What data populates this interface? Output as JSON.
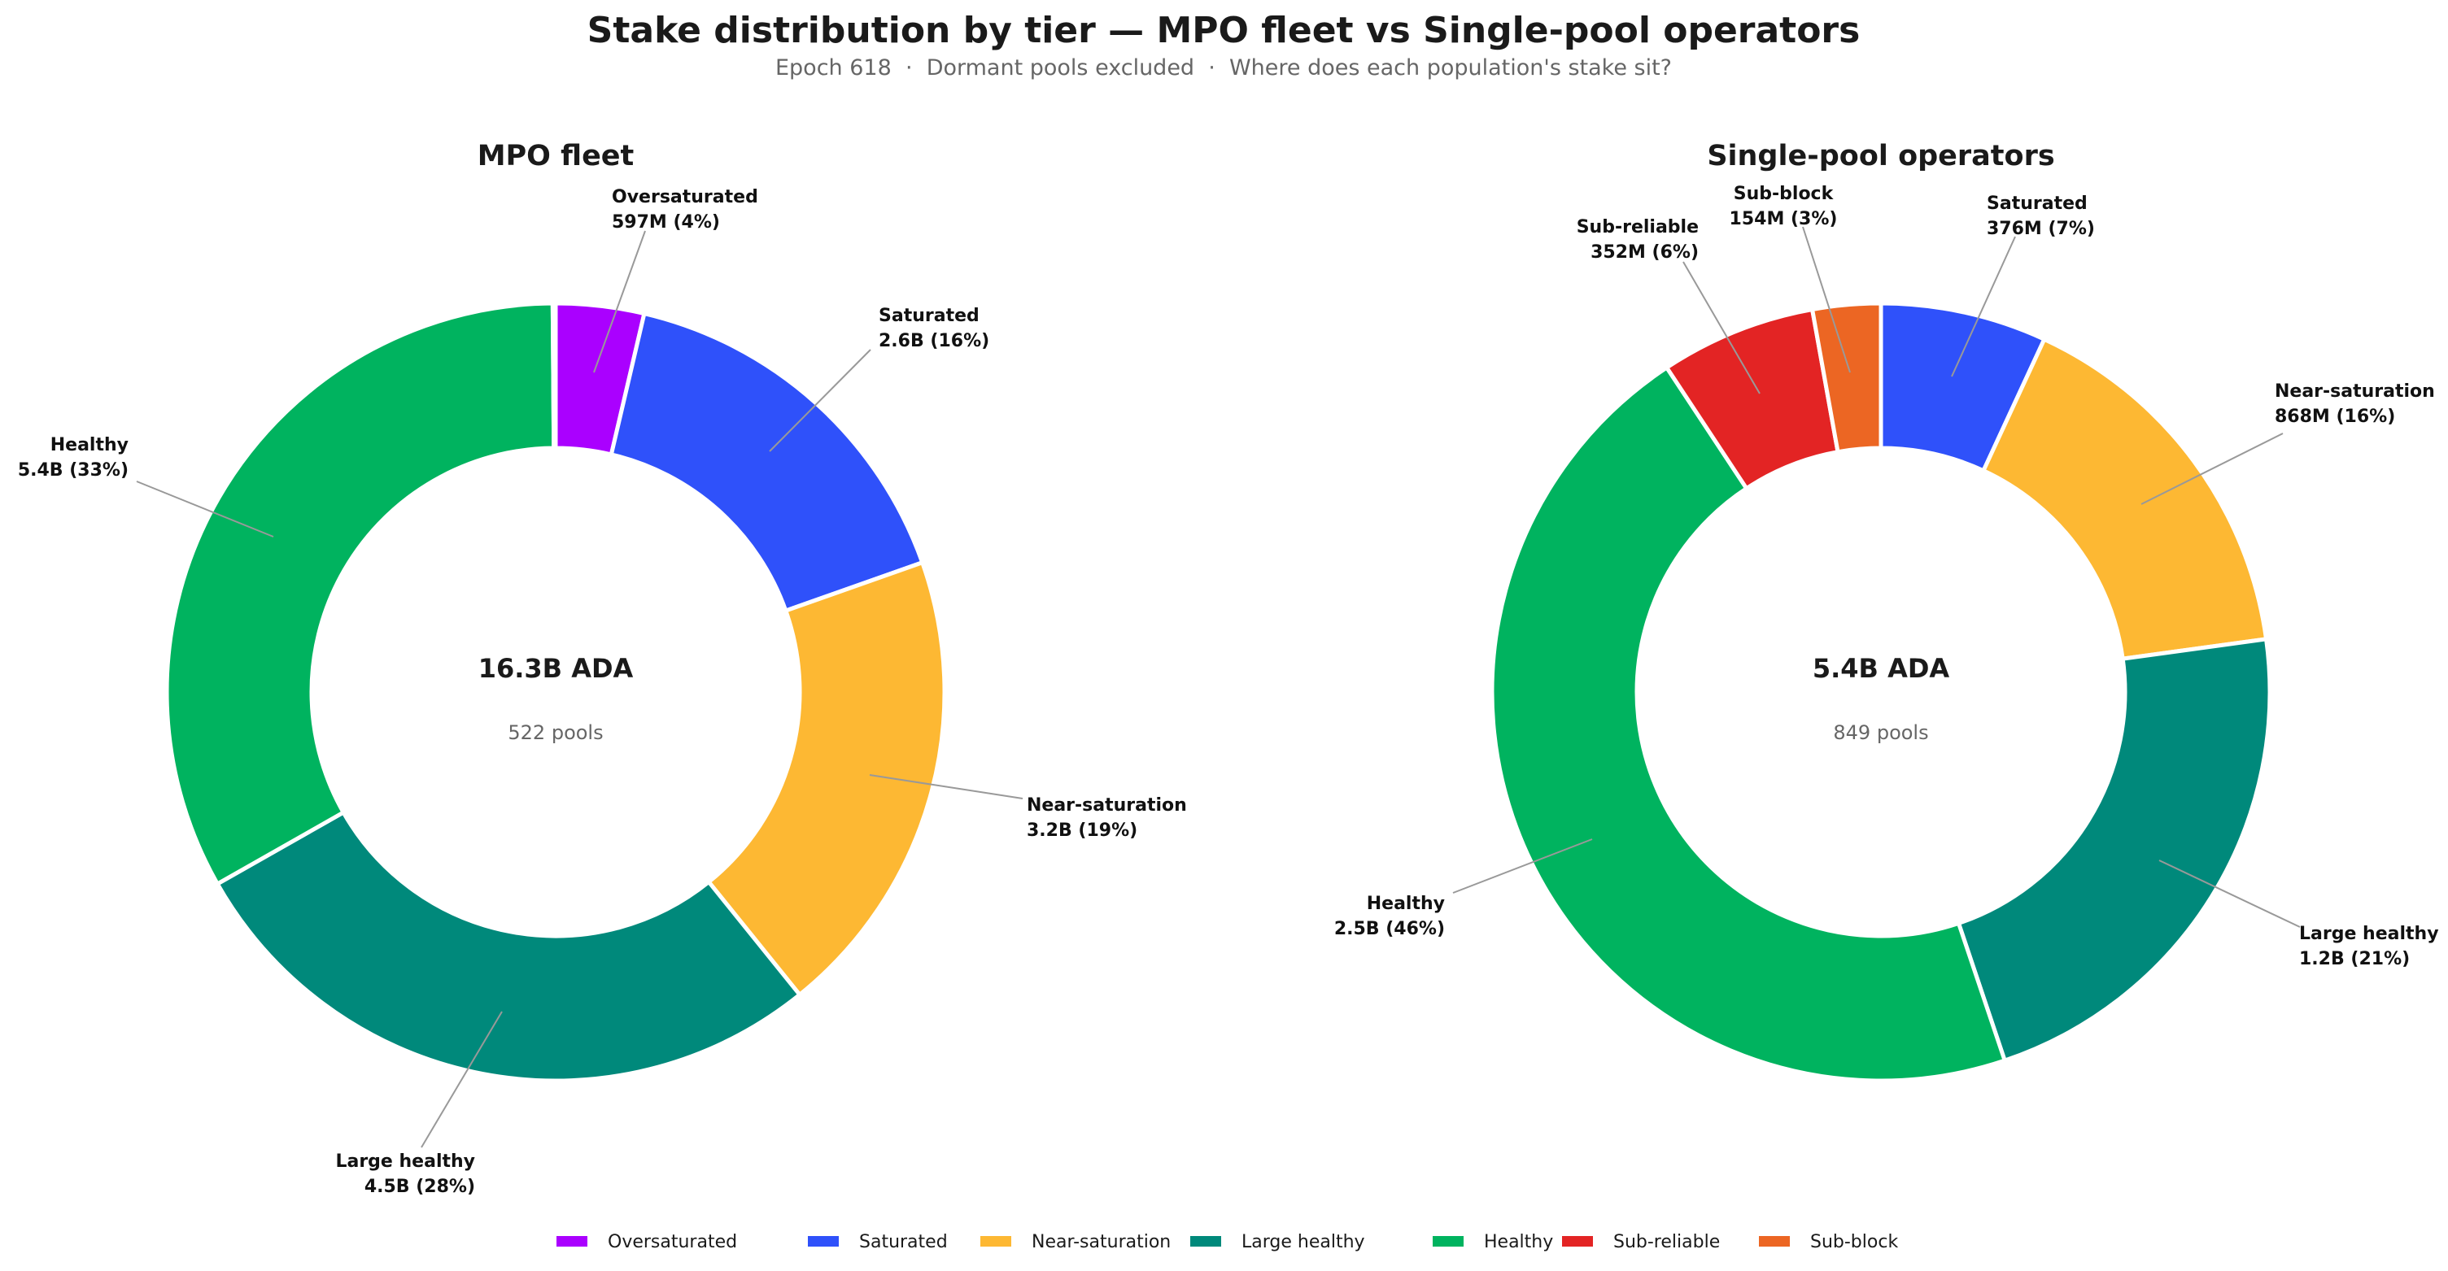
{
  "chart_data": {
    "type": "pie",
    "title": "Stake distribution by tier — MPO fleet vs Single-pool operators",
    "subtitle": "Epoch 618  ·  Dormant pools excluded  ·  Where does each population's stake sit?",
    "legend_position": "bottom",
    "tiers": [
      {
        "name": "Oversaturated",
        "color": "#aa00ff"
      },
      {
        "name": "Saturated",
        "color": "#2f51fa"
      },
      {
        "name": "Near-saturation",
        "color": "#fdb833"
      },
      {
        "name": "Large healthy",
        "color": "#00897b"
      },
      {
        "name": "Healthy",
        "color": "#00b35f"
      },
      {
        "name": "Sub-reliable",
        "color": "#e32424"
      },
      {
        "name": "Sub-block",
        "color": "#ec6623"
      }
    ],
    "charts": [
      {
        "title": "MPO fleet",
        "center_total": "16.3B ADA",
        "center_pools": "522 pools",
        "slices": [
          {
            "tier": "Oversaturated",
            "value": 597,
            "label_name": "Oversaturated",
            "label_value": "597M (4%)"
          },
          {
            "tier": "Saturated",
            "value": 2600,
            "label_name": "Saturated",
            "label_value": "2.6B (16%)"
          },
          {
            "tier": "Near-saturation",
            "value": 3200,
            "label_name": "Near-saturation",
            "label_value": "3.2B (19%)"
          },
          {
            "tier": "Large healthy",
            "value": 4500,
            "label_name": "Large healthy",
            "label_value": "4.5B (28%)"
          },
          {
            "tier": "Healthy",
            "value": 5400,
            "label_name": "Healthy",
            "label_value": "5.4B (33%)"
          },
          {
            "tier": "Sub-reliable",
            "value": 20,
            "label_name": "",
            "label_value": ""
          }
        ]
      },
      {
        "title": "Single-pool operators",
        "center_total": "5.4B ADA",
        "center_pools": "849 pools",
        "slices": [
          {
            "tier": "Saturated",
            "value": 376,
            "label_name": "Saturated",
            "label_value": "376M (7%)"
          },
          {
            "tier": "Near-saturation",
            "value": 868,
            "label_name": "Near-saturation",
            "label_value": "868M (16%)"
          },
          {
            "tier": "Large healthy",
            "value": 1200,
            "label_name": "Large healthy",
            "label_value": "1.2B (21%)"
          },
          {
            "tier": "Healthy",
            "value": 2500,
            "label_name": "Healthy",
            "label_value": "2.5B (46%)"
          },
          {
            "tier": "Sub-reliable",
            "value": 352,
            "label_name": "Sub-reliable",
            "label_value": "352M (6%)"
          },
          {
            "tier": "Sub-block",
            "value": 154,
            "label_name": "Sub-block",
            "label_value": "154M (3%)"
          }
        ]
      }
    ]
  }
}
